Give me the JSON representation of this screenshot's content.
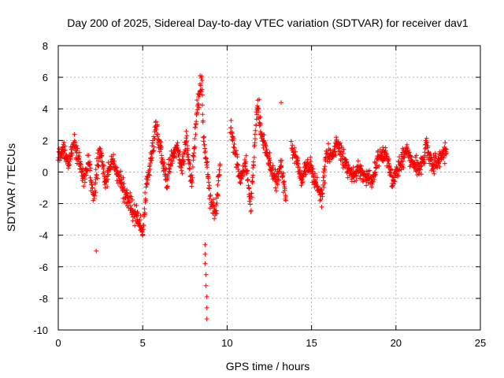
{
  "chart_data": {
    "type": "scatter",
    "title": "Day 200 of 2025, Sidereal Day-to-day VTEC variation (SDTVAR) for receiver dav1",
    "xlabel": "GPS time / hours",
    "ylabel": "SDTVAR / TECUs",
    "xlim": [
      0,
      25
    ],
    "ylim": [
      -10,
      8
    ],
    "xticks": [
      0,
      5,
      10,
      15,
      20,
      25
    ],
    "yticks": [
      -10,
      -8,
      -6,
      -4,
      -2,
      0,
      2,
      4,
      6,
      8
    ],
    "grid": true,
    "marker": "+",
    "color": "#ff0000",
    "series": [
      {
        "name": "dav1",
        "segments": [
          {
            "t": [
              0.0,
              0.3,
              0.6,
              0.9,
              1.2,
              1.5,
              1.8,
              2.1,
              2.3,
              2.5,
              2.8,
              3.2,
              3.6,
              4.0,
              4.4,
              4.7,
              4.9,
              5.0,
              5.2,
              5.5,
              5.8,
              6.1,
              6.4,
              6.7,
              7.0,
              7.3,
              7.6,
              7.9,
              8.1,
              8.3,
              8.5,
              8.6,
              8.8,
              9.0,
              9.3,
              9.6
            ],
            "v": [
              0.8,
              1.6,
              0.4,
              1.9,
              0.9,
              -0.4,
              0.6,
              -1.6,
              0.3,
              1.4,
              -0.6,
              0.9,
              -0.3,
              -1.5,
              -2.4,
              -3.0,
              -3.6,
              -3.9,
              -1.2,
              0.9,
              2.9,
              1.1,
              -0.6,
              0.7,
              1.6,
              0.4,
              2.0,
              -0.9,
              2.6,
              4.6,
              5.8,
              2.1,
              0.3,
              -1.8,
              -2.6,
              0.6
            ],
            "spread": 0.9
          },
          {
            "t": [
              10.2,
              10.5,
              10.8,
              11.1,
              11.4,
              11.8,
              12.0,
              12.3,
              12.6,
              12.9,
              13.2,
              13.5
            ],
            "v": [
              2.9,
              1.2,
              -0.6,
              0.6,
              -2.2,
              4.4,
              2.4,
              1.6,
              0.2,
              -0.6,
              0.4,
              -1.6
            ],
            "spread": 0.8
          },
          {
            "t": [
              13.8,
              14.1,
              14.4,
              14.7,
              15.0,
              15.3,
              15.6,
              15.9,
              16.2,
              16.5,
              16.8,
              17.1,
              17.4,
              17.8,
              18.2,
              18.6,
              19.0,
              19.4,
              19.8,
              20.2,
              20.6,
              21.0,
              21.4,
              21.8,
              22.2,
              22.6,
              23.0
            ],
            "v": [
              1.6,
              0.9,
              -0.6,
              0.6,
              0.1,
              -0.9,
              -1.6,
              1.3,
              0.9,
              2.0,
              1.1,
              0.4,
              -0.4,
              0.2,
              -0.3,
              -0.6,
              0.9,
              1.3,
              -0.6,
              0.4,
              1.4,
              0.6,
              0.2,
              1.6,
              0.4,
              0.8,
              1.2
            ],
            "spread": 0.8
          }
        ],
        "outliers": [
          {
            "t": 2.25,
            "v": -5.0
          },
          {
            "t": 8.7,
            "v": -4.6
          },
          {
            "t": 8.7,
            "v": -5.2
          },
          {
            "t": 8.7,
            "v": -5.8
          },
          {
            "t": 8.75,
            "v": -6.5
          },
          {
            "t": 8.75,
            "v": -7.2
          },
          {
            "t": 8.8,
            "v": -7.9
          },
          {
            "t": 8.8,
            "v": -8.6
          },
          {
            "t": 8.8,
            "v": -9.3
          },
          {
            "t": 8.4,
            "v": 6.1
          },
          {
            "t": 11.9,
            "v": 4.6
          },
          {
            "t": 13.2,
            "v": 4.4
          }
        ]
      }
    ]
  }
}
